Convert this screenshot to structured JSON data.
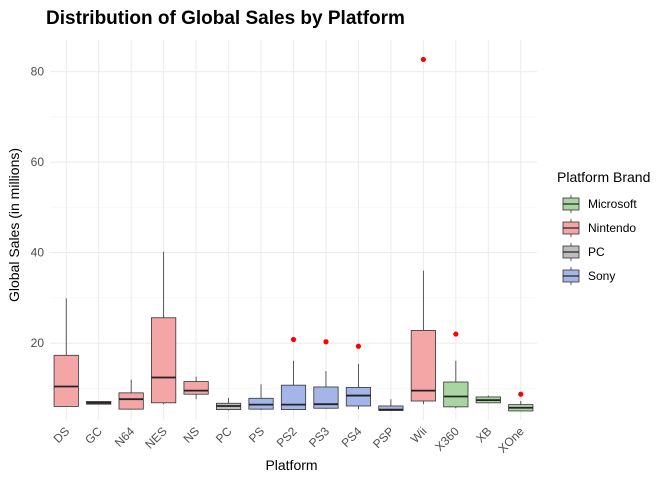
{
  "chart_data": {
    "type": "boxplot",
    "title": "Distribution of Global Sales by Platform",
    "xlabel": "Platform",
    "ylabel": "Global Sales (in millions)",
    "ylim": [
      3,
      87
    ],
    "yticks": [
      20,
      40,
      60,
      80
    ],
    "grid": true,
    "legend": {
      "title": "Platform Brand",
      "position": "right",
      "entries": [
        {
          "name": "Microsoft",
          "color": "#a8d5a2"
        },
        {
          "name": "Nintendo",
          "color": "#f4a6a6"
        },
        {
          "name": "PC",
          "color": "#bdbdbd"
        },
        {
          "name": "Sony",
          "color": "#a4b6e8"
        }
      ]
    },
    "outlier_color": "#ff0000",
    "boxes": [
      {
        "platform": "DS",
        "brand": "Nintendo",
        "min": 6.0,
        "q1": 6.0,
        "median": 10.4,
        "q3": 17.3,
        "max": 29.9,
        "outliers": []
      },
      {
        "platform": "GC",
        "brand": "Nintendo",
        "min": 6.4,
        "q1": 6.5,
        "median": 6.8,
        "q3": 7.1,
        "max": 7.2,
        "outliers": []
      },
      {
        "platform": "N64",
        "brand": "Nintendo",
        "min": 5.3,
        "q1": 5.4,
        "median": 7.6,
        "q3": 9.0,
        "max": 11.9,
        "outliers": []
      },
      {
        "platform": "NES",
        "brand": "Nintendo",
        "min": 6.5,
        "q1": 6.8,
        "median": 12.4,
        "q3": 25.6,
        "max": 40.2,
        "outliers": []
      },
      {
        "platform": "NS",
        "brand": "Nintendo",
        "min": 7.6,
        "q1": 8.7,
        "median": 9.5,
        "q3": 11.5,
        "max": 12.6,
        "outliers": []
      },
      {
        "platform": "PC",
        "brand": "PC",
        "min": 5.1,
        "q1": 5.3,
        "median": 6.1,
        "q3": 6.7,
        "max": 7.9,
        "outliers": []
      },
      {
        "platform": "PS",
        "brand": "Sony",
        "min": 5.2,
        "q1": 5.4,
        "median": 6.4,
        "q3": 7.8,
        "max": 10.9,
        "outliers": []
      },
      {
        "platform": "PS2",
        "brand": "Sony",
        "min": 5.2,
        "q1": 5.3,
        "median": 6.4,
        "q3": 10.7,
        "max": 16.1,
        "outliers": [
          20.8
        ]
      },
      {
        "platform": "PS3",
        "brand": "Sony",
        "min": 5.5,
        "q1": 5.6,
        "median": 6.5,
        "q3": 10.3,
        "max": 13.8,
        "outliers": [
          20.3
        ]
      },
      {
        "platform": "PS4",
        "brand": "Sony",
        "min": 5.4,
        "q1": 6.1,
        "median": 8.4,
        "q3": 10.2,
        "max": 15.4,
        "outliers": [
          19.3
        ]
      },
      {
        "platform": "PSP",
        "brand": "Sony",
        "min": 5.0,
        "q1": 5.1,
        "median": 5.3,
        "q3": 6.1,
        "max": 7.6,
        "outliers": []
      },
      {
        "platform": "Wii",
        "brand": "Nintendo",
        "min": 6.5,
        "q1": 7.2,
        "median": 9.5,
        "q3": 22.8,
        "max": 36.0,
        "outliers": [
          82.7
        ]
      },
      {
        "platform": "X360",
        "brand": "Microsoft",
        "min": 5.6,
        "q1": 5.9,
        "median": 8.2,
        "q3": 11.4,
        "max": 16.1,
        "outliers": [
          22.0
        ]
      },
      {
        "platform": "XB",
        "brand": "Microsoft",
        "min": 6.7,
        "q1": 6.8,
        "median": 7.4,
        "q3": 8.1,
        "max": 8.4,
        "outliers": []
      },
      {
        "platform": "XOne",
        "brand": "Microsoft",
        "min": 4.9,
        "q1": 5.0,
        "median": 5.7,
        "q3": 6.4,
        "max": 7.2,
        "outliers": [
          8.7
        ]
      }
    ]
  }
}
